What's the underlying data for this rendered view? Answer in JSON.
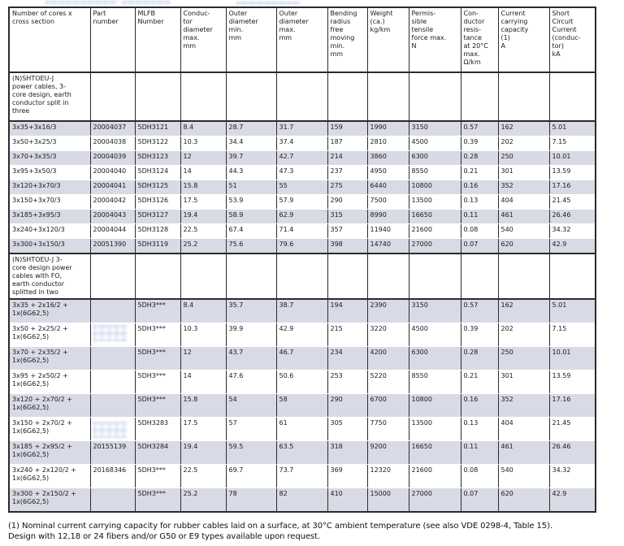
{
  "table": {
    "columns": [
      {
        "label": "Number of cores x\ncross section"
      },
      {
        "label": "Part\nnumber"
      },
      {
        "label": "MLFB\nNumber"
      },
      {
        "label": "Conduc-\ntor\ndiameter\nmax.\nmm"
      },
      {
        "label": "Outer\ndiameter\nmin.\nmm"
      },
      {
        "label": "Outer\ndiameter\nmax.\nmm"
      },
      {
        "label": "Bending\nradius\nfree\nmoving\nmin.\nmm"
      },
      {
        "label": "Weight\n(ca.)\nkg/km"
      },
      {
        "label": "Permis-\nsible\ntensile\nforce max.\nN"
      },
      {
        "label": "Con-\nductor\nresis-\ntance\nat 20°C\nmax.\nΩ/km"
      },
      {
        "label": "Current\ncarrying\ncapacity\n(1)\nA"
      },
      {
        "label": "Short\nCircuit\nCurrent\n(conduc-\ntor)\nkA"
      }
    ],
    "sections": [
      {
        "title": "(N)SHTOEU-J\npower cables, 3-\ncore design, earth\nconductor split in\nthree",
        "rows": [
          [
            "3x35+3x16/3",
            "20004037",
            "5DH3121",
            "8.4",
            "28.7",
            "31.7",
            "159",
            "1990",
            "3150",
            "0.57",
            "162",
            "5.01"
          ],
          [
            "3x50+3x25/3",
            "20004038",
            "5DH3122",
            "10.3",
            "34.4",
            "37.4",
            "187",
            "2810",
            "4500",
            "0.39",
            "202",
            "7.15"
          ],
          [
            "3x70+3x35/3",
            "20004039",
            "5DH3123",
            "12",
            "39.7",
            "42.7",
            "214",
            "3860",
            "6300",
            "0.28",
            "250",
            "10.01"
          ],
          [
            "3x95+3x50/3",
            "20004040",
            "5DH3124",
            "14",
            "44.3",
            "47.3",
            "237",
            "4950",
            "8550",
            "0.21",
            "301",
            "13.59"
          ],
          [
            "3x120+3x70/3",
            "20004041",
            "5DH3125",
            "15.8",
            "51",
            "55",
            "275",
            "6440",
            "10800",
            "0.16",
            "352",
            "17.16"
          ],
          [
            "3x150+3x70/3",
            "20004042",
            "5DH3126",
            "17.5",
            "53.9",
            "57.9",
            "290",
            "7500",
            "13500",
            "0.13",
            "404",
            "21.45"
          ],
          [
            "3x185+3x95/3",
            "20004043",
            "5DH3127",
            "19.4",
            "58.9",
            "62.9",
            "315",
            "8990",
            "16650",
            "0.11",
            "461",
            "26.46"
          ],
          [
            "3x240+3x120/3",
            "20004044",
            "5DH3128",
            "22.5",
            "67.4",
            "71.4",
            "357",
            "11940",
            "21600",
            "0.08",
            "540",
            "34.32"
          ],
          [
            "3x300+3x150/3",
            "20051390",
            "5DH3119",
            "25.2",
            "75.6",
            "79.6",
            "398",
            "14740",
            "27000",
            "0.07",
            "620",
            "42.9"
          ]
        ]
      },
      {
        "title": "(N)SHTOEU-J 3-\ncore design power\ncables with FO,\nearth conductor\nsplitted in two",
        "rows": [
          [
            "3x35 + 2x16/2 + 1x(6G62,5)",
            "",
            "5DH3***",
            "8.4",
            "35.7",
            "38.7",
            "194",
            "2390",
            "3150",
            "0.57",
            "162",
            "5.01"
          ],
          [
            "3x50 + 2x25/2 + 1x(6G62,5)",
            "",
            "5DH3***",
            "10.3",
            "39.9",
            "42.9",
            "215",
            "3220",
            "4500",
            "0.39",
            "202",
            "7.15"
          ],
          [
            "3x70 + 2x35/2 + 1x(6G62,5)",
            "",
            "5DH3***",
            "12",
            "43.7",
            "46.7",
            "234",
            "4200",
            "6300",
            "0.28",
            "250",
            "10.01"
          ],
          [
            "3x95 + 2x50/2 + 1x(6G62,5)",
            "",
            "5DH3***",
            "14",
            "47.6",
            "50.6",
            "253",
            "5220",
            "8550",
            "0.21",
            "301",
            "13.59"
          ],
          [
            "3x120 + 2x70/2 + 1x(6G62,5)",
            "",
            "5DH3***",
            "15.8",
            "54",
            "58",
            "290",
            "6700",
            "10800",
            "0.16",
            "352",
            "17.16"
          ],
          [
            "3x150 + 2x70/2 + 1x(6G62,5)",
            "",
            "5DH3283",
            "17.5",
            "57",
            "61",
            "305",
            "7750",
            "13500",
            "0.13",
            "404",
            "21.45"
          ],
          [
            "3x185 + 2x95/2 + 1x(6G62,5)",
            "20155139",
            "5DH3284",
            "19.4",
            "59.5",
            "63.5",
            "318",
            "9200",
            "16650",
            "0.11",
            "461",
            "26.46"
          ],
          [
            "3x240 + 2x120/2 + 1x(6G62,5)",
            "20168346",
            "5DH3***",
            "22.5",
            "69.7",
            "73.7",
            "369",
            "12320",
            "21600",
            "0.08",
            "540",
            "34.32"
          ],
          [
            "3x300 + 2x150/2 + 1x(6G62,5)",
            "",
            "5DH3***",
            "25.2",
            "78",
            "82",
            "410",
            "15000",
            "27000",
            "0.07",
            "620",
            "42.9"
          ]
        ]
      }
    ]
  },
  "footnote": {
    "line1": "(1) Nominal current carrying capacity for rubber cables laid on a surface, at 30°C ambient temperature (see also VDE 0298-4, Table 15).",
    "line2": "Design with 12,18 or 24 fibers and/or G50 or E9 types available upon request."
  },
  "colors": {
    "stripe": "#d8dbe6",
    "border": "#2b2b2b",
    "text": "#1a1a1a",
    "artifact_blue": "#7d9ed1"
  }
}
